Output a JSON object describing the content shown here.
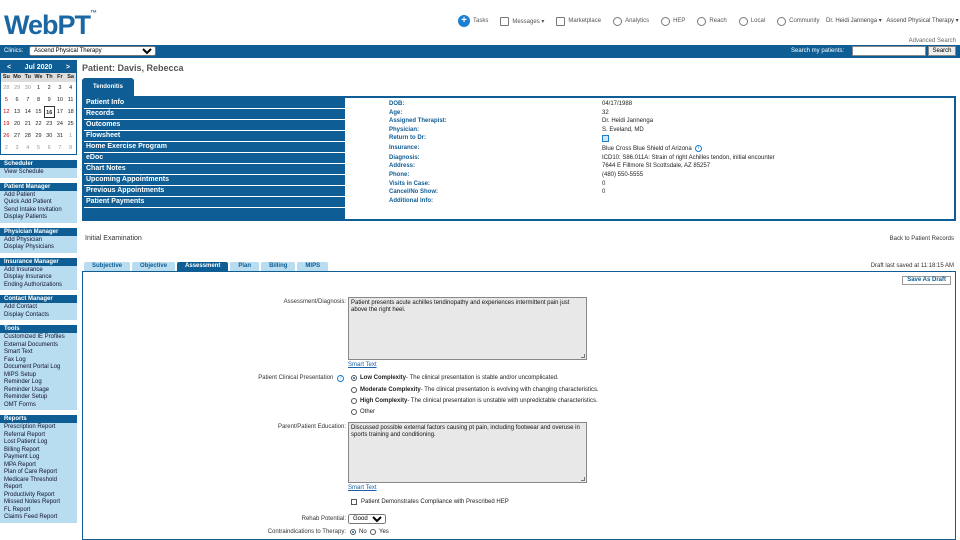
{
  "header": {
    "logo": "WebPT",
    "logo_mark": "™",
    "nav": [
      {
        "label": "Tasks",
        "icon": "plus-circle-icon"
      },
      {
        "label": "Messages ▾",
        "icon": "envelope-icon"
      },
      {
        "label": "Marketplace",
        "icon": "cart-icon"
      },
      {
        "label": "Analytics",
        "icon": "analytics-icon"
      },
      {
        "label": "HEP",
        "icon": "dumbbell-icon"
      },
      {
        "label": "Reach",
        "icon": "megaphone-icon"
      },
      {
        "label": "Local",
        "icon": "location-pin-icon"
      },
      {
        "label": "Community",
        "icon": "community-icon"
      }
    ],
    "user": "Dr. Heidi Jannenga ▾",
    "org": "Ascend Physical Therapy ▾",
    "advanced_search": "Advanced Search"
  },
  "clinic_bar": {
    "clinics_label": "Clinics:",
    "clinic_selected": "Ascend Physical Therapy",
    "search_label": "Search my patients:",
    "search_value": "",
    "search_button": "Search"
  },
  "calendar": {
    "month": "Jul 2020",
    "prev": "<",
    "next": ">",
    "dow": [
      "Su",
      "Mo",
      "Tu",
      "We",
      "Th",
      "Fr",
      "Sa"
    ],
    "weeks": [
      [
        "28",
        "29",
        "30",
        "1",
        "2",
        "3",
        "4"
      ],
      [
        "5",
        "6",
        "7",
        "8",
        "9",
        "10",
        "11"
      ],
      [
        "12",
        "13",
        "14",
        "15",
        "16",
        "17",
        "18"
      ],
      [
        "19",
        "20",
        "21",
        "22",
        "23",
        "24",
        "25"
      ],
      [
        "26",
        "27",
        "28",
        "29",
        "30",
        "31",
        "1"
      ],
      [
        "2",
        "3",
        "4",
        "5",
        "6",
        "7",
        "8"
      ]
    ],
    "today": "16"
  },
  "sidebar": [
    {
      "title": "Scheduler",
      "items": [
        "View Schedule"
      ]
    },
    {
      "title": "Patient Manager",
      "items": [
        "Add Patient",
        "Quick Add Patient",
        "Send Intake Invitation",
        "Display Patients"
      ]
    },
    {
      "title": "Physician Manager",
      "items": [
        "Add Physician",
        "Display Physicians"
      ]
    },
    {
      "title": "Insurance Manager",
      "items": [
        "Add Insurance",
        "Display Insurance",
        "Ending Authorizations"
      ]
    },
    {
      "title": "Contact Manager",
      "items": [
        "Add Contact",
        "Display Contacts"
      ]
    },
    {
      "title": "Tools",
      "items": [
        "Customized IE Profiles",
        "External Documents",
        "Smart Text",
        "Fax Log",
        "Document Portal Log",
        "MIPS Setup",
        "Reminder Log",
        "Reminder Usage",
        "Reminder Setup",
        "OMT Forms"
      ]
    },
    {
      "title": "Reports",
      "items": [
        "Prescription Report",
        "Referral Report",
        "Lost Patient Log",
        "Billing Report",
        "Payment Log",
        "MPA Report",
        "Plan of Care Report",
        "Medicare Threshold",
        "Report",
        "Productivity Report",
        "Missed Notes Report",
        "FL Report",
        "Claims Feed Report"
      ]
    }
  ],
  "patient": {
    "title": "Patient: Davis, Rebecca",
    "case_tab": "Tendonitis",
    "menu": [
      "Patient Info",
      "Records",
      "Outcomes",
      "Flowsheet",
      "Home Exercise Program",
      "eDoc",
      "Chart Notes",
      "Upcoming Appointments",
      "Previous Appointments",
      "Patient Payments"
    ],
    "info": [
      {
        "k": "DOB:",
        "v": "04/17/1988"
      },
      {
        "k": "Age:",
        "v": "32"
      },
      {
        "k": "Assigned Therapist:",
        "v": "Dr. Heidi Jannenga"
      },
      {
        "k": "Physician:",
        "v": "S. Eveland, MD"
      },
      {
        "k": "Return to Dr:",
        "v": ""
      },
      {
        "k": "Insurance:",
        "v": "Blue Cross Blue Shield of Arizona"
      },
      {
        "k": "Diagnosis:",
        "v": "ICD10: S86.011A: Strain of right Achilles tendon, initial encounter"
      },
      {
        "k": "Address:",
        "v": "7644 E Fillmore St Scottsdale, AZ 85257"
      },
      {
        "k": "Phone:",
        "v": "(480) 550-5555"
      },
      {
        "k": "Visits in Case:",
        "v": "0"
      },
      {
        "k": "Cancel/No Show:",
        "v": "0"
      },
      {
        "k": "Additional Info:",
        "v": ""
      }
    ]
  },
  "exam": {
    "title": "Initial Examination",
    "back": "Back to Patient Records",
    "draft_note": "Draft last saved at 11:18:15 AM",
    "tabs": [
      "Subjective",
      "Objective",
      "Assessment",
      "Plan",
      "Billing",
      "MIPS"
    ],
    "active_tab": "Assessment",
    "save_draft": "Save As Draft",
    "assessment_label": "Assessment/Diagnosis:",
    "assessment_text": "Patient presents acute achilles tendinopathy and experiences intermittent pain just above the right heel.",
    "smart_text": "Smart Text",
    "presentation_label": "Patient Clinical Presentation",
    "presentation_options": [
      {
        "bold": "Low Complexity",
        "rest": " - The clinical presentation is stable and/or uncomplicated.",
        "selected": true
      },
      {
        "bold": "Moderate Complexity",
        "rest": " - The clinical presentation is evolving with changing characteristics.",
        "selected": false
      },
      {
        "bold": "High Complexity",
        "rest": " - The clinical presentation is unstable with unpredictable characteristics.",
        "selected": false
      },
      {
        "bold": "",
        "rest": "Other",
        "selected": false
      }
    ],
    "education_label": "Parent/Patient Education:",
    "education_text": "Discussed possible external factors causing pt pain, including footwear and overuse in sports training and conditioning.",
    "hep_label": "Patient Demonstrates Compliance with Prescribed HEP",
    "rehab_label": "Rehab Potential:",
    "rehab_value": "Good",
    "contra_label": "Contraindications to Therapy:",
    "contra_no": "No",
    "contra_yes": "Yes"
  }
}
